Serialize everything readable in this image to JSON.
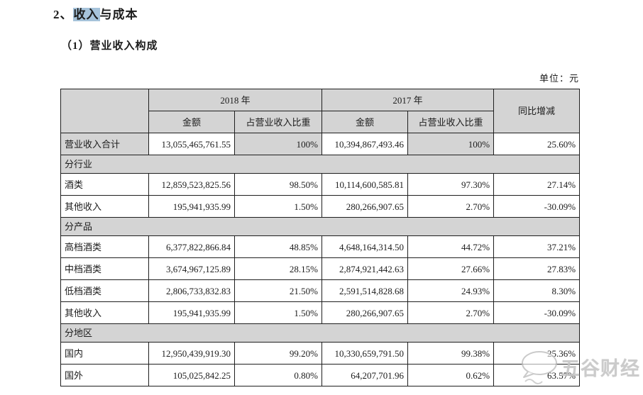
{
  "page": {
    "title": {
      "prefix": "2、",
      "highlight": "收入",
      "rest": "与成本"
    },
    "subtitle": "（1）营业收入构成",
    "unit_label": "单位：元"
  },
  "table": {
    "columns": {
      "corner": "",
      "year_2018": "2018 年",
      "year_2017": "2017 年",
      "yoy": "同比增减",
      "amount": "金额",
      "share": "占营业收入比重"
    },
    "rows": [
      {
        "type": "total",
        "label": "营业收入合计",
        "amount_2018": "13,055,465,761.55",
        "share_2018": "100%",
        "amount_2017": "10,394,867,493.46",
        "share_2017": "100%",
        "yoy": "25.60%"
      },
      {
        "type": "section",
        "label": "分行业"
      },
      {
        "type": "data",
        "label": "酒类",
        "amount_2018": "12,859,523,825.56",
        "share_2018": "98.50%",
        "amount_2017": "10,114,600,585.81",
        "share_2017": "97.30%",
        "yoy": "27.14%"
      },
      {
        "type": "data",
        "label": "其他收入",
        "amount_2018": "195,941,935.99",
        "share_2018": "1.50%",
        "amount_2017": "280,266,907.65",
        "share_2017": "2.70%",
        "yoy": "-30.09%"
      },
      {
        "type": "section",
        "label": "分产品"
      },
      {
        "type": "data",
        "label": "高档酒类",
        "amount_2018": "6,377,822,866.84",
        "share_2018": "48.85%",
        "amount_2017": "4,648,164,314.50",
        "share_2017": "44.72%",
        "yoy": "37.21%"
      },
      {
        "type": "data",
        "label": "中档酒类",
        "amount_2018": "3,674,967,125.89",
        "share_2018": "28.15%",
        "amount_2017": "2,874,921,442.63",
        "share_2017": "27.66%",
        "yoy": "27.83%"
      },
      {
        "type": "data",
        "label": "低档酒类",
        "amount_2018": "2,806,733,832.83",
        "share_2018": "21.50%",
        "amount_2017": "2,591,514,828.68",
        "share_2017": "24.93%",
        "yoy": "8.30%"
      },
      {
        "type": "data",
        "label": "其他收入",
        "amount_2018": "195,941,935.99",
        "share_2018": "1.50%",
        "amount_2017": "280,266,907.65",
        "share_2017": "2.70%",
        "yoy": "-30.09%"
      },
      {
        "type": "section",
        "label": "分地区"
      },
      {
        "type": "data",
        "label": "国内",
        "amount_2018": "12,950,439,919.30",
        "share_2018": "99.20%",
        "amount_2017": "10,330,659,791.50",
        "share_2017": "99.38%",
        "yoy": "25.36%"
      },
      {
        "type": "data",
        "label": "国外",
        "amount_2018": "105,025,842.25",
        "share_2018": "0.80%",
        "amount_2017": "64,207,701.96",
        "share_2017": "0.62%",
        "yoy": "63.57%"
      }
    ]
  },
  "watermark": {
    "text": "五谷财经",
    "logo": "speech-bubble-logo"
  },
  "colors": {
    "shaded_cell": "#d4d4d4",
    "title_highlight": "#a6c3da",
    "border": "#1f1f1f",
    "watermark": "#c3c3c3"
  }
}
